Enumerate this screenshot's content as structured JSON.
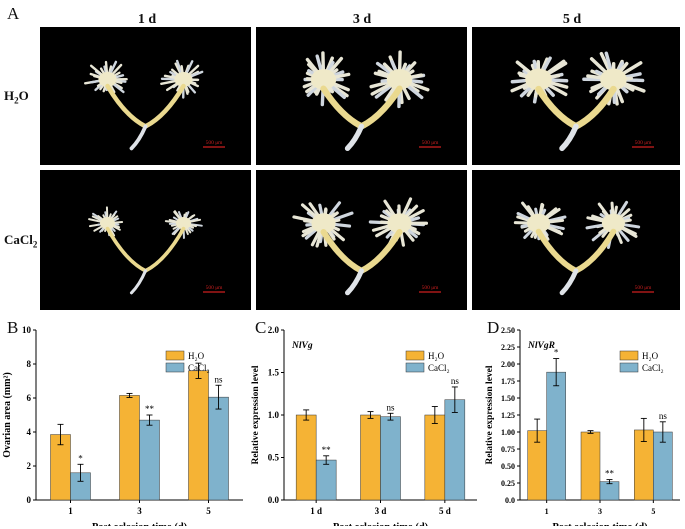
{
  "panel_letters": {
    "a": "A",
    "b": "B",
    "c": "C",
    "d": "D"
  },
  "panel_a": {
    "columns": [
      "1 d",
      "3 d",
      "5 d"
    ],
    "rows": [
      {
        "label_main": "H",
        "label_sub": "2",
        "label_tail": "O"
      },
      {
        "label_main": "CaCl",
        "label_sub": "2",
        "label_tail": ""
      }
    ],
    "scale_bar_label": "500 μm"
  },
  "colors": {
    "h2o": "#F5B335",
    "cacl2": "#7FB2CC",
    "photo_bg": "#000000",
    "scale_bar": "#cc1f1f"
  },
  "chart_data": [
    {
      "type": "bar",
      "panel": "B",
      "categories": [
        "1",
        "3",
        "5"
      ],
      "series": [
        {
          "name": "H2O",
          "values": [
            3.85,
            6.15,
            7.6
          ],
          "errors": [
            0.6,
            0.12,
            0.45
          ]
        },
        {
          "name": "CaCl2",
          "values": [
            1.6,
            4.7,
            6.05
          ],
          "errors": [
            0.5,
            0.3,
            0.7
          ]
        }
      ],
      "significance": [
        "*",
        "**",
        "ns"
      ],
      "ylim": [
        0,
        10
      ],
      "yticks": [
        "0",
        "2",
        "4",
        "6",
        "8",
        "10"
      ],
      "ylabel": "Ovarian area (mm²)",
      "xlabel": "Post eclosion time (d)",
      "title": "",
      "legend": [
        "H₂O",
        "CaCl₂"
      ],
      "legend_position": "top-right"
    },
    {
      "type": "bar",
      "panel": "C",
      "categories": [
        "1 d",
        "3 d",
        "5 d"
      ],
      "series": [
        {
          "name": "H2O",
          "values": [
            1.0,
            1.0,
            1.0
          ],
          "errors": [
            0.06,
            0.04,
            0.1
          ]
        },
        {
          "name": "CaCl2",
          "values": [
            0.47,
            0.98,
            1.18
          ],
          "errors": [
            0.05,
            0.04,
            0.15
          ]
        }
      ],
      "significance": [
        "**",
        "ns",
        "ns"
      ],
      "ylim": [
        0,
        2.0
      ],
      "yticks": [
        "0.0",
        "0.5",
        "1.0",
        "1.5",
        "2.0"
      ],
      "ylabel": "Relative expression level",
      "xlabel": "Post eclosion time (d)",
      "title": "NlVg",
      "legend": [
        "H₂O",
        "CaCl₂"
      ],
      "legend_position": "top-right"
    },
    {
      "type": "bar",
      "panel": "D",
      "categories": [
        "1",
        "3",
        "5"
      ],
      "series": [
        {
          "name": "H2O",
          "values": [
            1.02,
            1.0,
            1.03
          ],
          "errors": [
            0.17,
            0.02,
            0.17
          ]
        },
        {
          "name": "CaCl2",
          "values": [
            1.88,
            0.27,
            1.0
          ],
          "errors": [
            0.2,
            0.03,
            0.15
          ]
        }
      ],
      "significance": [
        "*",
        "**",
        "ns"
      ],
      "ylim": [
        0,
        2.5
      ],
      "yticks": [
        "0.0",
        "0.25",
        "0.50",
        "0.75",
        "1.00",
        "1.25",
        "1.50",
        "1.75",
        "2.00",
        "2.25",
        "2.50"
      ],
      "ylabel": "Relative expression level",
      "xlabel": "Post eclosion time (d)",
      "title": "NlVgR",
      "legend": [
        "H₂O",
        "CaCl₂"
      ],
      "legend_position": "top-right"
    }
  ]
}
